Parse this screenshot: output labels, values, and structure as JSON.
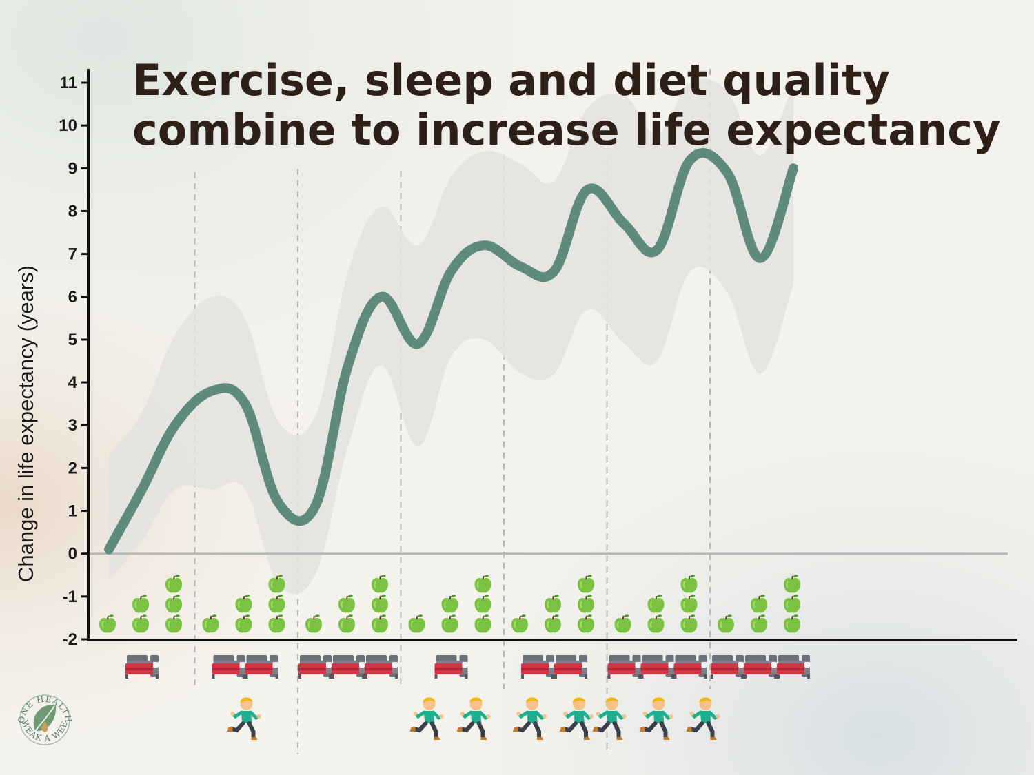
{
  "chart_data": {
    "type": "line",
    "title_lines": [
      "Exercise, sleep and diet quality",
      "combine to increase life expectancy"
    ],
    "ylabel": "Change in life expectancy (years)",
    "ylim": [
      -2,
      11
    ],
    "yticks": [
      -2,
      -1,
      0,
      1,
      2,
      3,
      4,
      5,
      6,
      7,
      8,
      9,
      10,
      11
    ],
    "groups": [
      {
        "sleep": 1,
        "exercise": 0,
        "diet_levels": [
          1,
          2,
          3
        ],
        "values": [
          0.1,
          1.5,
          3.0
        ],
        "lower": [
          -0.6,
          0.3,
          1.5
        ],
        "upper": [
          2.3,
          3.3,
          5.1
        ]
      },
      {
        "sleep": 2,
        "exercise": 1,
        "diet_levels": [
          1,
          2,
          3
        ],
        "values": [
          3.8,
          3.5,
          1.2
        ],
        "lower": [
          1.5,
          1.5,
          -0.7
        ],
        "upper": [
          6.0,
          5.5,
          3.1
        ]
      },
      {
        "sleep": 3,
        "exercise": 0,
        "diet_levels": [
          1,
          2,
          3
        ],
        "values": [
          1.1,
          4.4,
          6.0
        ],
        "lower": [
          -0.5,
          2.5,
          4.4
        ],
        "upper": [
          3.2,
          6.6,
          8.1
        ]
      },
      {
        "sleep": 1,
        "exercise": 2,
        "diet_levels": [
          1,
          2,
          3
        ],
        "values": [
          4.9,
          6.6,
          7.2
        ],
        "lower": [
          2.5,
          4.6,
          5.0
        ],
        "upper": [
          7.2,
          8.8,
          9.4
        ]
      },
      {
        "sleep": 2,
        "exercise": 2,
        "diet_levels": [
          1,
          2,
          3
        ],
        "values": [
          6.7,
          6.6,
          8.5
        ],
        "lower": [
          4.2,
          4.2,
          5.7
        ],
        "upper": [
          9.1,
          8.7,
          10.4
        ]
      },
      {
        "sleep": 3,
        "exercise": 3,
        "diet_levels": [
          1,
          2,
          3
        ],
        "values": [
          7.7,
          7.1,
          9.2
        ],
        "lower": [
          4.9,
          4.5,
          6.6
        ],
        "upper": [
          10.7,
          9.8,
          11.0
        ]
      },
      {
        "sleep": 3,
        "exercise": 0,
        "diet_levels": [
          1,
          2,
          3
        ],
        "values": [
          8.9,
          6.9,
          9.0
        ],
        "lower": [
          6.1,
          4.2,
          6.3
        ],
        "upper": [
          10.8,
          9.3,
          11.0
        ]
      }
    ],
    "grid": true,
    "legend": "none",
    "colors": {
      "line": "#5f8a7e",
      "band": "#e3e3e1",
      "apple": "#7cc242",
      "bed_frame": "#6b6f78",
      "bed_sheet": "#d63447",
      "runner_shirt": "#1fae8e",
      "runner_hair": "#f2b705",
      "runner_skin": "#f5c28b",
      "runner_pants": "#3a3f4a",
      "zero_line": "#b8b8b8",
      "divider": "#b5b5b5",
      "title": "#2e1f17"
    }
  },
  "logo": {
    "arc_top": "ONE HEALTH",
    "arc_bottom": "TWEAK A WEEK",
    "icon": "leaf-drop-icon"
  }
}
